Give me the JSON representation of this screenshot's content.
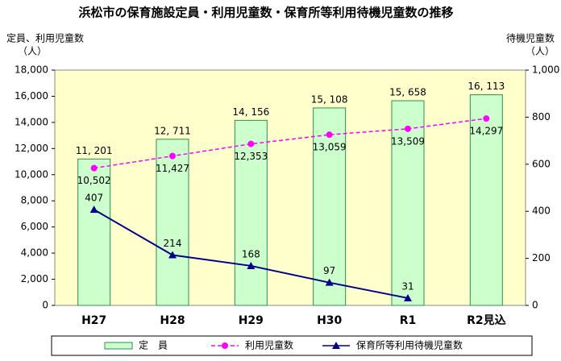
{
  "chart_data": {
    "type": "bar",
    "title": "浜松市の保育施設定員・利用児童数・保育所等利用待機児童数の推移",
    "y_label": "定員、利用児童数",
    "y_unit": "（人）",
    "y2_label": "待機児童数",
    "y2_unit": "（人）",
    "categories": [
      "H27",
      "H28",
      "H29",
      "H30",
      "R1",
      "R2見込"
    ],
    "ylim": [
      0,
      18000
    ],
    "yticks": [
      0,
      {
        "value": 2000,
        "label": "2,000"
      },
      {
        "value": 4000,
        "label": "4,000"
      },
      {
        "value": 6000,
        "label": "6,000"
      },
      {
        "value": 8000,
        "label": "8,000"
      },
      {
        "value": 10000,
        "label": "10,000"
      },
      {
        "value": 12000,
        "label": "12,000"
      },
      {
        "value": 14000,
        "label": "14,000"
      },
      {
        "value": 16000,
        "label": "16,000"
      },
      {
        "value": 18000,
        "label": "18,000"
      }
    ],
    "y2lim": [
      0,
      1000
    ],
    "y2ticks": [
      0,
      200,
      400,
      600,
      800,
      {
        "value": 1000,
        "label": "1,000"
      }
    ],
    "series": [
      {
        "name": "定　員",
        "type": "bar",
        "color": "#ccffcc",
        "values": [
          11201,
          12711,
          14156,
          15108,
          15658,
          16113
        ],
        "value_labels": [
          "11, 201",
          "12, 711",
          "14, 156",
          "15, 108",
          "15, 658",
          "16, 113"
        ]
      },
      {
        "name": "利用児童数",
        "type": "line",
        "color": "#ff00ff",
        "dashed": true,
        "marker": "circle",
        "values": [
          10502,
          11427,
          12353,
          13059,
          13509,
          14297
        ],
        "value_labels": [
          "10,502",
          "11,427",
          "12,353",
          "13,059",
          "13,509",
          "14,297"
        ]
      },
      {
        "name": "保育所等利用待機児童数",
        "type": "line",
        "axis": "y2",
        "color": "#00008b",
        "dashed": false,
        "marker": "triangle",
        "values": [
          407,
          214,
          168,
          97,
          31,
          null
        ]
      }
    ]
  }
}
